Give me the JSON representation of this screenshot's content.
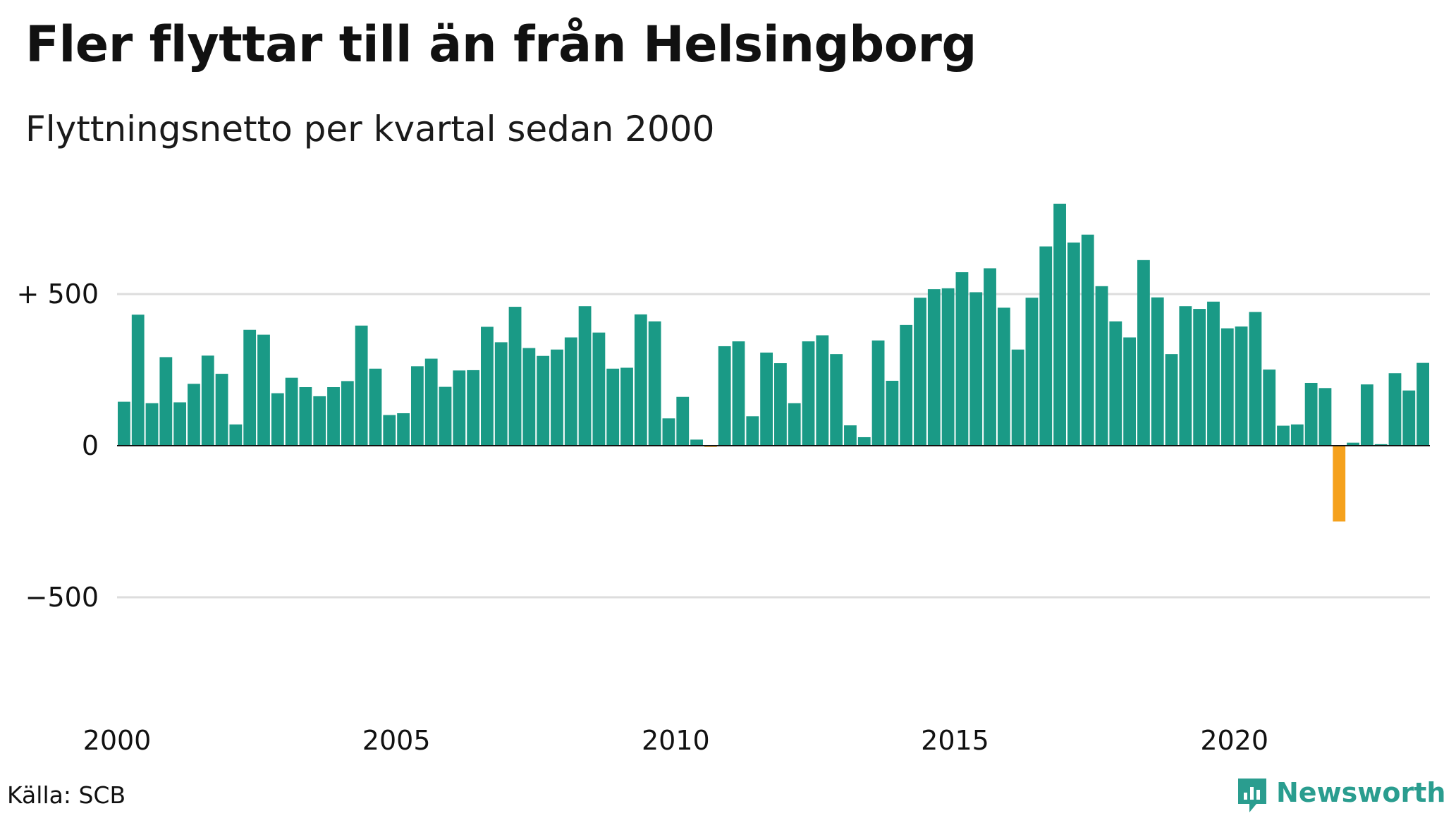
{
  "title": "Fler flyttar till än från Helsingborg",
  "subtitle": "Flyttningsnetto per kvartal sedan 2000",
  "source": "Källa: SCB",
  "brand": "Newsworthy",
  "colors": {
    "positive": "#1a9a86",
    "negative": "#f5a11c",
    "grid": "#dddddd",
    "baseline": "#111111",
    "brand": "#2a9d8f"
  },
  "chart_data": {
    "type": "bar",
    "x_start": 2000,
    "x_step": 0.25,
    "ylim": [
      -800,
      800
    ],
    "y_ticks": [
      {
        "value": 500,
        "label": "+ 500"
      },
      {
        "value": 0,
        "label": "0"
      },
      {
        "value": -500,
        "label": "−500"
      }
    ],
    "x_ticks": [
      {
        "value": 2000,
        "label": "2000"
      },
      {
        "value": 2005,
        "label": "2005"
      },
      {
        "value": 2010,
        "label": "2010"
      },
      {
        "value": 2015,
        "label": "2015"
      },
      {
        "value": 2020,
        "label": "2020"
      }
    ],
    "values": [
      145,
      432,
      140,
      292,
      143,
      204,
      297,
      237,
      70,
      382,
      366,
      173,
      224,
      193,
      163,
      193,
      213,
      396,
      254,
      101,
      107,
      262,
      287,
      194,
      248,
      249,
      392,
      341,
      458,
      322,
      296,
      317,
      357,
      460,
      373,
      254,
      257,
      433,
      410,
      90,
      161,
      20,
      -4,
      328,
      344,
      97,
      307,
      272,
      140,
      344,
      364,
      302,
      67,
      28,
      347,
      214,
      398,
      488,
      516,
      519,
      572,
      506,
      585,
      455,
      317,
      488,
      657,
      798,
      670,
      696,
      526,
      410,
      357,
      612,
      489,
      302,
      460,
      451,
      475,
      387,
      393,
      441,
      251,
      66,
      70,
      207,
      190,
      -250,
      10,
      202,
      5,
      239,
      182,
      273
    ]
  }
}
